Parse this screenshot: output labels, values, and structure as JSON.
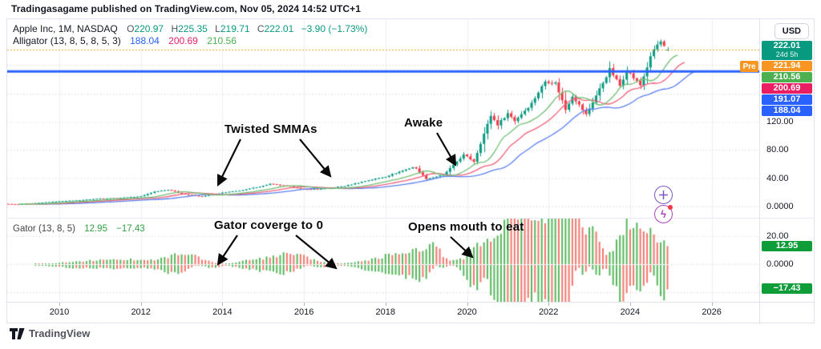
{
  "header": {
    "published_line": "Tradingasagame published on TradingView.com, Nov 05, 2024 14:52 UTC+1"
  },
  "legend": {
    "symbol": "Apple Inc, 1M, NASDAQ",
    "ohlc": [
      {
        "k": "O",
        "v": "220.97"
      },
      {
        "k": "H",
        "v": "225.35"
      },
      {
        "k": "L",
        "v": "219.71"
      },
      {
        "k": "C",
        "v": "222.01"
      }
    ],
    "change": "−3.90 (−1.73%)",
    "alligator_label": "Alligator (13, 8, 5, 8, 5, 3)",
    "alligator_values": {
      "jaw": "188.04",
      "teeth": "200.69",
      "lips": "210.56"
    },
    "gator_label": "Gator (13, 8, 5)",
    "gator_values": {
      "upper": "12.95",
      "lower": "−17.43"
    }
  },
  "annotations": {
    "twisted": {
      "text": "Twisted SMMAs"
    },
    "awake": {
      "text": "Awake"
    },
    "converge": {
      "text": "Gator coverge to 0"
    },
    "mouth": {
      "text": "Opens mouth to eat"
    }
  },
  "price_scale": {
    "currency": "USD",
    "price_labels": [
      {
        "text": "222.01",
        "sub": "24d 5h",
        "price": 222.01,
        "bg": "#089981"
      },
      {
        "text": "221.94",
        "tag": "Pre",
        "price": 221.94,
        "bg": "#F89623"
      },
      {
        "text": "210.56",
        "price": 210.56,
        "bg": "#4CAF50"
      },
      {
        "text": "200.69",
        "price": 200.69,
        "bg": "#E91E63"
      },
      {
        "text": "191.07",
        "price": 191.07,
        "bg": "#2962FF"
      },
      {
        "text": "188.04",
        "price": 188.04,
        "bg": "#2962FF"
      }
    ],
    "main_ticks": [
      {
        "text": "120.00",
        "value": 120
      },
      {
        "text": "80.00",
        "value": 80
      },
      {
        "text": "40.00",
        "value": 40
      },
      {
        "text": "0.0000",
        "value": 0
      }
    ],
    "gator_ticks": [
      {
        "text": "20.00",
        "value": 20
      },
      {
        "text": "0.0000",
        "value": 0
      }
    ],
    "gator_labels": [
      {
        "text": "12.95",
        "value": 12.95,
        "bg": "#0F9D3A"
      },
      {
        "text": "−17.43",
        "value": -17.43,
        "bg": "#0F9D3A"
      }
    ]
  },
  "time_axis": {
    "years": [
      "2010",
      "2012",
      "2014",
      "2016",
      "2018",
      "2020",
      "2022",
      "2024",
      "2026"
    ],
    "start_year": 2010,
    "step": 2
  },
  "buttons": {
    "quick_add": {
      "icon": "plus-icon",
      "glyph": "＋"
    },
    "alerts": {
      "icon": "lightning-icon",
      "glyph": "ϟ"
    }
  },
  "footer": {
    "brand": "TradingView"
  },
  "colors": {
    "up": "#089981",
    "down": "#F23645",
    "jaw": "#5A7FF0",
    "teeth": "#F0607A",
    "lips": "#6FBE73",
    "jaw_label": "#2962FF",
    "teeth_label": "#E91E63",
    "lips_label": "#4CAF50",
    "hline": "#2962FF",
    "pre_line": "#F7A237",
    "gator_green": "#57B65B",
    "gator_red": "#F2766E",
    "grid": "rgba(42,46,57,0.08)",
    "grid_dot": "rgba(42,46,57,0.22)",
    "annotation": "#0a0a0a"
  },
  "chart_data": {
    "type": "candlestick",
    "title": "Apple Inc, 1M, NASDAQ — monthly candles with Williams Alligator overlay and Gator oscillator pane",
    "symbol": "Apple Inc",
    "interval": "1M",
    "exchange": "NASDAQ",
    "currency": "USD",
    "ohlc_last": {
      "open": 220.97,
      "high": 225.35,
      "low": 219.71,
      "close": 222.01,
      "change": -3.9,
      "change_pct": -1.73
    },
    "premarket_price": 221.94,
    "horizontal_line_price": 191.07,
    "price_line": 222.01,
    "x_axis": {
      "label": "time",
      "visible_years": [
        2008.7,
        2027.0
      ],
      "tick_years": [
        2010,
        2012,
        2014,
        2016,
        2018,
        2020,
        2022,
        2024,
        2026
      ]
    },
    "y_axis_main": {
      "ticks": [
        0,
        40,
        80,
        120,
        160,
        200
      ],
      "visible_tick_labels": [
        "0.0000",
        "40.00",
        "80.00",
        "120.00"
      ],
      "ylim": [
        0,
        240
      ]
    },
    "y_axis_gator": {
      "ticks": [
        -20,
        0,
        20
      ],
      "ylim": [
        -30,
        30
      ]
    },
    "alligator": {
      "jaw_length": 13,
      "teeth_length": 8,
      "lips_length": 5,
      "jaw_shift": 8,
      "teeth_shift": 5,
      "lips_shift": 3,
      "jaw_value": 188.04,
      "teeth_value": 200.69,
      "lips_value": 210.56
    },
    "gator": {
      "params": "13, 8, 5",
      "upper_last": 12.95,
      "lower_last": -17.43
    },
    "monthly_close_anchors": [
      [
        2008.75,
        3.6
      ],
      [
        2009.0,
        3.05
      ],
      [
        2009.33,
        4.5
      ],
      [
        2009.75,
        6.3
      ],
      [
        2010.0,
        7.5
      ],
      [
        2010.5,
        9.0
      ],
      [
        2011.0,
        11.5
      ],
      [
        2011.42,
        12.0
      ],
      [
        2012.0,
        14.5
      ],
      [
        2012.33,
        21.0
      ],
      [
        2012.7,
        23.8
      ],
      [
        2013.0,
        18.0
      ],
      [
        2013.5,
        14.2
      ],
      [
        2014.0,
        19.5
      ],
      [
        2014.5,
        23.2
      ],
      [
        2015.0,
        29.3
      ],
      [
        2015.17,
        32.0
      ],
      [
        2015.67,
        28.2
      ],
      [
        2016.0,
        24.3
      ],
      [
        2016.42,
        25.0
      ],
      [
        2017.0,
        29.0
      ],
      [
        2017.5,
        36.0
      ],
      [
        2018.0,
        42.3
      ],
      [
        2018.7,
        56.4
      ],
      [
        2019.0,
        39.4
      ],
      [
        2019.42,
        44.5
      ],
      [
        2019.92,
        73.4
      ],
      [
        2020.17,
        63.6
      ],
      [
        2020.58,
        129.0
      ],
      [
        2020.75,
        115.8
      ],
      [
        2021.0,
        131.9
      ],
      [
        2021.17,
        121.3
      ],
      [
        2021.58,
        145.9
      ],
      [
        2021.92,
        177.6
      ],
      [
        2022.17,
        174.6
      ],
      [
        2022.42,
        136.7
      ],
      [
        2022.58,
        157.2
      ],
      [
        2022.92,
        129.9
      ],
      [
        2023.5,
        193.9
      ],
      [
        2023.75,
        170.8
      ],
      [
        2023.92,
        192.5
      ],
      [
        2024.25,
        171.5
      ],
      [
        2024.5,
        210.6
      ],
      [
        2024.58,
        222.0
      ],
      [
        2024.67,
        229.0
      ],
      [
        2024.75,
        233.0
      ],
      [
        2024.83,
        225.9
      ],
      [
        2024.92,
        222.01
      ]
    ]
  }
}
